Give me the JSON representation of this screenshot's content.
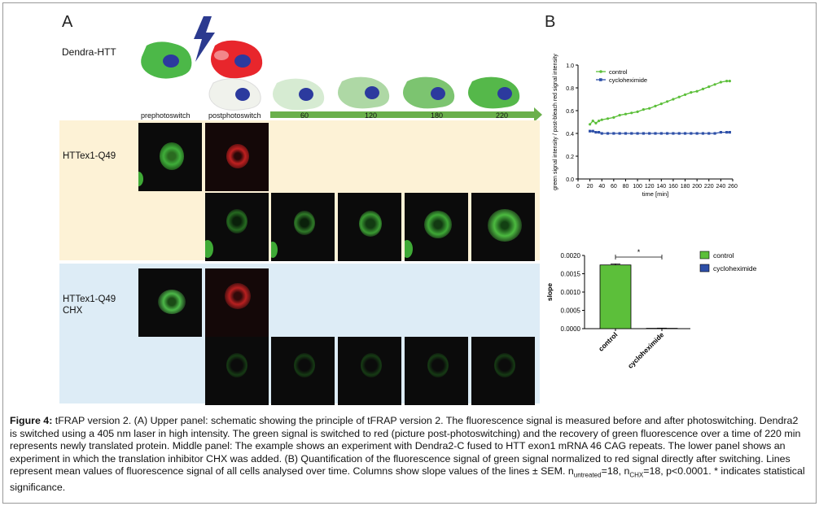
{
  "panel_a": {
    "letter": "A",
    "construct_label": "Dendra-HTT",
    "column_labels": [
      "prephotoswitch",
      "postphotoswitch",
      "60",
      "120",
      "180",
      "220"
    ],
    "row_labels": [
      "HTTex1-Q49",
      "HTTex1-Q49\nCHX"
    ],
    "row_label_1": "HTTex1-Q49",
    "row_label_2a": "HTTex1-Q49",
    "row_label_2b": "CHX",
    "colors": {
      "untreated_bg": "#fdf2d6",
      "chx_bg": "#ddecf6",
      "green_cell": "#4cb848",
      "red_cell": "#e8262c",
      "nucleus": "#2c3a9e",
      "arrow": "#6ab04c",
      "bolt": "#2b3a8f"
    }
  },
  "panel_b": {
    "letter": "B",
    "line_chart": {
      "ylabel": "green signal intensity / post-bleach red signal intensity",
      "xlabel": "time [min]"
    },
    "bar_chart": {
      "ylabel": "slope",
      "significance": "*"
    }
  },
  "chart_data": [
    {
      "type": "line",
      "ylabel": "green signal intensity / post-bleach red signal intensity",
      "xlabel": "time [min]",
      "xlim": [
        0,
        260
      ],
      "ylim": [
        0,
        1.0
      ],
      "xticks": [
        0,
        20,
        40,
        60,
        80,
        100,
        120,
        140,
        160,
        180,
        200,
        220,
        240,
        260
      ],
      "yticks": [
        0.0,
        0.2,
        0.4,
        0.6,
        0.8,
        1.0
      ],
      "legend_position": "top-left",
      "series": [
        {
          "name": "control",
          "color": "#5cbf3a",
          "x": [
            20,
            25,
            30,
            35,
            40,
            50,
            60,
            70,
            80,
            90,
            100,
            110,
            120,
            130,
            140,
            150,
            160,
            170,
            180,
            190,
            200,
            210,
            220,
            230,
            240,
            250,
            255
          ],
          "y": [
            0.48,
            0.51,
            0.49,
            0.51,
            0.52,
            0.53,
            0.54,
            0.56,
            0.57,
            0.58,
            0.59,
            0.61,
            0.62,
            0.64,
            0.66,
            0.68,
            0.7,
            0.72,
            0.74,
            0.76,
            0.77,
            0.79,
            0.81,
            0.83,
            0.85,
            0.86,
            0.86
          ]
        },
        {
          "name": "cycloheximide",
          "color": "#2d4fa8",
          "x": [
            20,
            25,
            30,
            35,
            40,
            50,
            60,
            70,
            80,
            90,
            100,
            110,
            120,
            130,
            140,
            150,
            160,
            170,
            180,
            190,
            200,
            210,
            220,
            230,
            240,
            250,
            255
          ],
          "y": [
            0.42,
            0.42,
            0.41,
            0.41,
            0.4,
            0.4,
            0.4,
            0.4,
            0.4,
            0.4,
            0.4,
            0.4,
            0.4,
            0.4,
            0.4,
            0.4,
            0.4,
            0.4,
            0.4,
            0.4,
            0.4,
            0.4,
            0.4,
            0.4,
            0.41,
            0.41,
            0.41
          ]
        }
      ]
    },
    {
      "type": "bar",
      "ylabel": "slope",
      "categories": [
        "control",
        "cycloheximide"
      ],
      "values": [
        0.00174,
        1e-05
      ],
      "errors": [
        3e-05,
        5e-06
      ],
      "colors": [
        "#5cbf3a",
        "#2d4fa8"
      ],
      "ylim": [
        0,
        0.002
      ],
      "yticks": [
        "0.0000",
        "0.0005",
        "0.0010",
        "0.0015",
        "0.0020"
      ],
      "legend": [
        "control",
        "cycloheximide"
      ],
      "legend_position": "top-right",
      "annotation": "*"
    }
  ],
  "caption": {
    "label": "Figure 4:",
    "text_1": " tFRAP version 2. (A) Upper panel: schematic showing the principle of tFRAP version 2. The fluorescence signal is measured before and after photoswitching. Dendra2 is switched using a 405 nm laser in high intensity. The green signal is switched to red (picture post-photoswitching) and the recovery of green fluorescence over a time of 220 min represents newly translated protein. Middle panel: The example shows an experiment with Dendra2-C fused to HTT exon1 mRNA 46 CAG repeats. The lower panel shows an experiment in which the translation inhibitor CHX was added. (B) Quantification of the fluorescence signal of green signal normalized to red signal directly after switching. Lines represent mean values of fluorescence signal of all cells analysed over time. Columns show slope values of the lines ± SEM. n",
    "sub_1": "untreated",
    "text_2": "=18, n",
    "sub_2": "CHX",
    "text_3": "=18, p<0.0001.  * indicates statistical significance."
  }
}
